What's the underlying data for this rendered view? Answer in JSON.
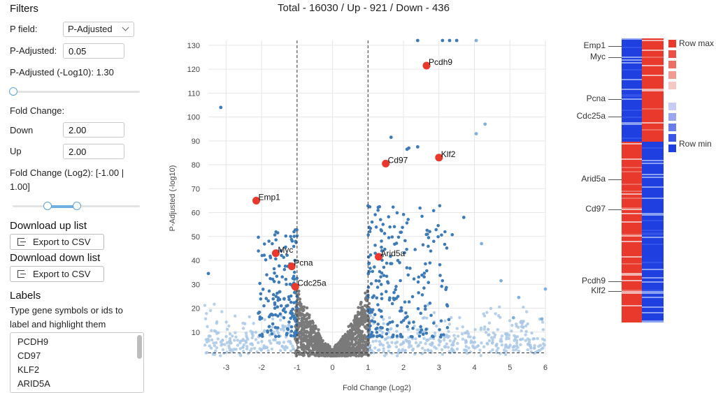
{
  "sidebar": {
    "filters_heading": "Filters",
    "p_field_label": "P field:",
    "p_field_value": "P-Adjusted",
    "p_adjusted_label": "P-Adjusted:",
    "p_adjusted_value": "0.05",
    "p_adjusted_log_label": "P-Adjusted (-Log10): 1.30",
    "p_adjusted_slider": 0.0,
    "fold_change_label": "Fold Change:",
    "down_label": "Down",
    "down_value": "2.00",
    "up_label": "Up",
    "up_value": "2.00",
    "fold_change_log_line1": "Fold Change (Log2): [-1.00 |",
    "fold_change_log_line2": "1.00]",
    "fold_slider_range": [
      0.27,
      0.5
    ],
    "download_up_heading": "Download up list",
    "download_down_heading": "Download down list",
    "export_csv_label": "Export to CSV",
    "labels_heading": "Labels",
    "labels_desc_line1": "Type gene symbols or ids to",
    "labels_desc_line2": "label and highlight them",
    "label_genes": [
      "PCDH9",
      "CD97",
      "KLF2",
      "ARID5A"
    ]
  },
  "title": "Total - 16030 / Up - 921 / Down - 436",
  "colors": {
    "up_down_sig": "#3d7ab8",
    "significant_light": "#a9c8e6",
    "nonsignificant": "#7a7a7a",
    "highlight": "#e8392c",
    "heat_high": "#e8392c",
    "heat_low": "#1f3fe0"
  },
  "chart_data": [
    {
      "type": "scatter",
      "xlabel": "Fold Change (Log2)",
      "ylabel": "P-Adjusted (-log10)",
      "xlim": [
        -3.5,
        6
      ],
      "ylim": [
        0,
        132
      ],
      "x_ticks": [
        -3,
        -2,
        -1,
        0,
        1,
        2,
        3,
        4,
        5,
        6
      ],
      "y_ticks": [
        10,
        20,
        30,
        40,
        50,
        60,
        70,
        80,
        90,
        100,
        110,
        120,
        130
      ],
      "thresholds": {
        "x": [
          -1,
          1
        ],
        "y": 1.3
      },
      "highlighted_points": [
        {
          "label": "Pcdh9",
          "x": 2.65,
          "y": 121.5
        },
        {
          "label": "Klf2",
          "x": 3.0,
          "y": 83.0
        },
        {
          "label": "Cd97",
          "x": 1.5,
          "y": 80.5
        },
        {
          "label": "Emp1",
          "x": -2.15,
          "y": 65.0
        },
        {
          "label": "Myc",
          "x": -1.6,
          "y": 43.0
        },
        {
          "label": "Arid5a",
          "x": 1.3,
          "y": 41.5
        },
        {
          "label": "Pcna",
          "x": -1.15,
          "y": 37.5
        },
        {
          "label": "Cdc25a",
          "x": -1.05,
          "y": 29.0
        }
      ],
      "outlier_points": [
        {
          "x": -3.15,
          "y": 104
        },
        {
          "x": 2.4,
          "y": 132
        },
        {
          "x": 3.1,
          "y": 132
        },
        {
          "x": 3.3,
          "y": 132
        },
        {
          "x": 3.5,
          "y": 132
        },
        {
          "x": 4.05,
          "y": 132
        },
        {
          "x": 4.3,
          "y": 97
        },
        {
          "x": 4.05,
          "y": 93
        },
        {
          "x": 1.65,
          "y": 91.5
        },
        {
          "x": 2.15,
          "y": 87
        },
        {
          "x": 2.4,
          "y": 87.5
        },
        {
          "x": 2.1,
          "y": 86.5
        },
        {
          "x": 3.7,
          "y": 58
        },
        {
          "x": 4.2,
          "y": 47
        },
        {
          "x": 4.75,
          "y": 31.5
        },
        {
          "x": 5.25,
          "y": 24.5
        },
        {
          "x": 5.1,
          "y": 16
        },
        {
          "x": 6.0,
          "y": 28
        },
        {
          "x": -3.5,
          "y": 34.5
        },
        {
          "x": 5.9,
          "y": 15.5
        }
      ]
    },
    {
      "type": "heatmap",
      "row_labels": [
        "Emp1",
        "Myc",
        "Pcna",
        "Cdc25a",
        "Arid5a",
        "Cd97",
        "Pcdh9",
        "Klf2"
      ],
      "columns": 2,
      "upper_block": {
        "left": "low",
        "right": "high",
        "fraction": 0.36
      },
      "lower_block": {
        "left": "high",
        "right": "low"
      },
      "legend": {
        "max_label": "Row max",
        "min_label": "Row min"
      }
    }
  ]
}
